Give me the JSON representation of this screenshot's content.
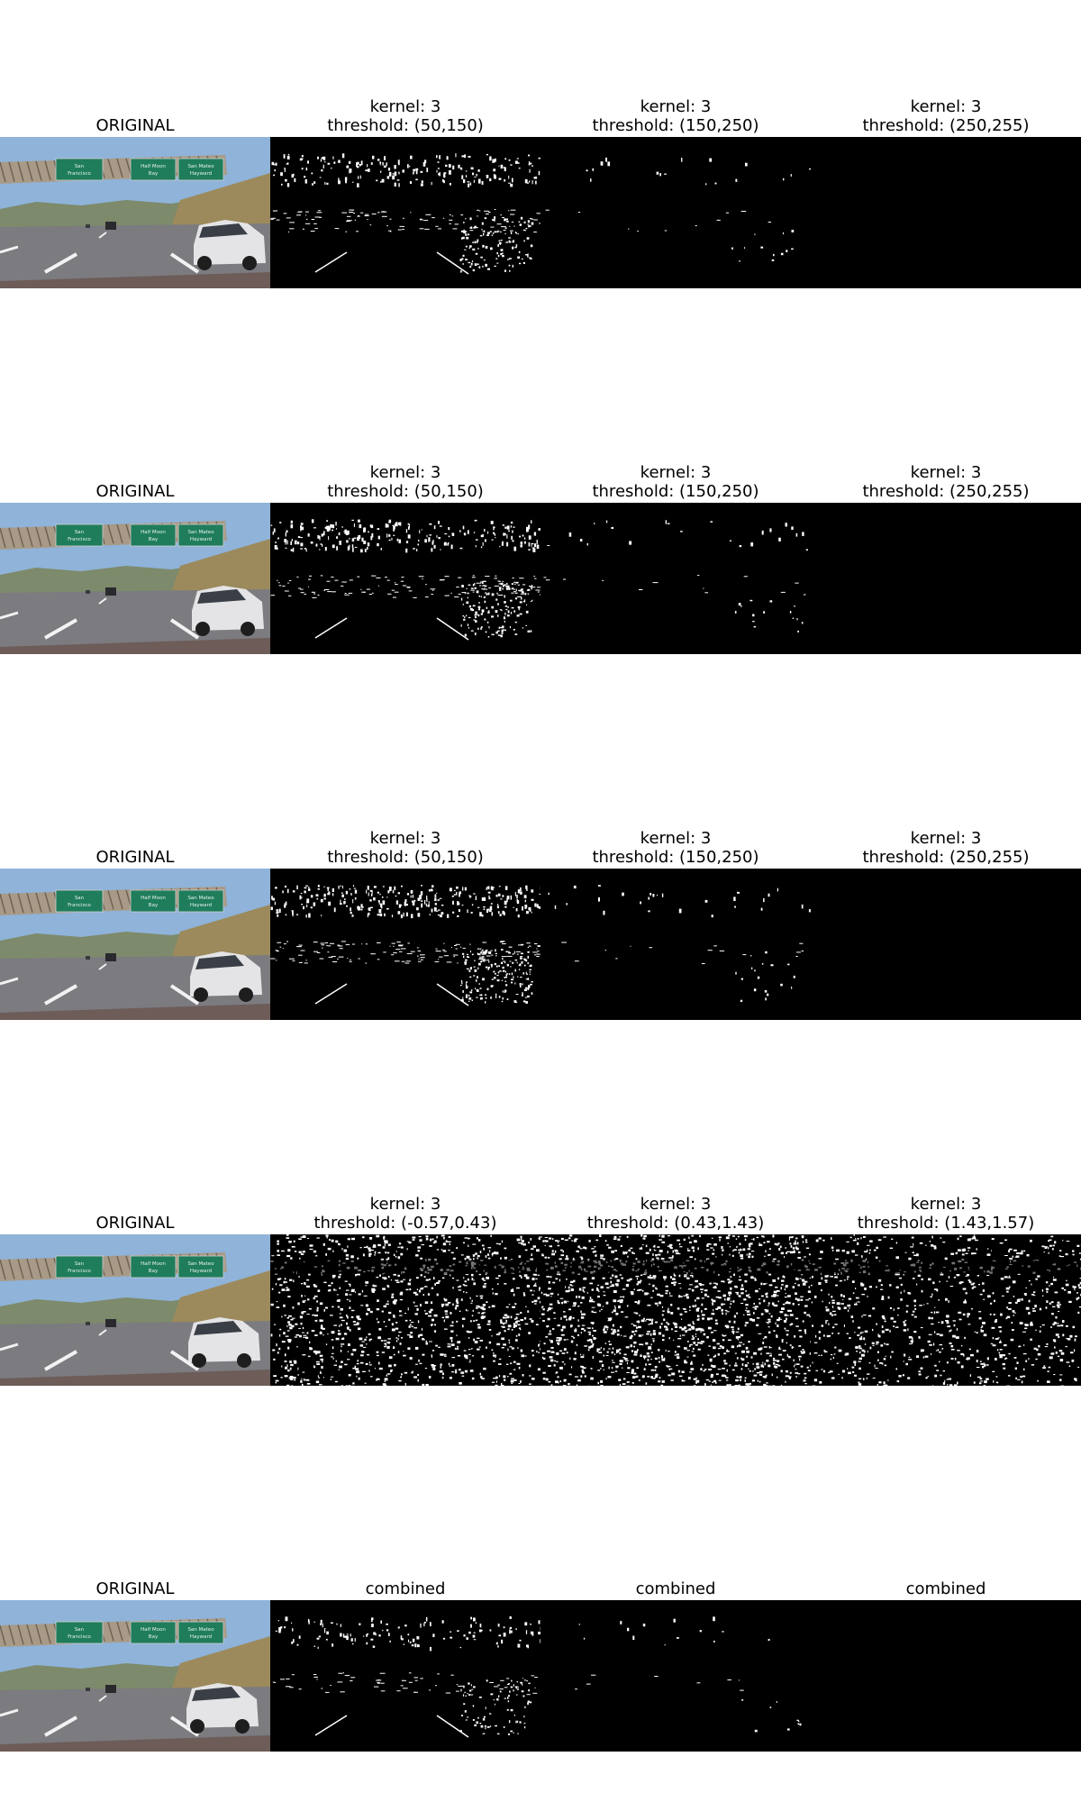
{
  "rows": [
    {
      "panels": [
        {
          "type": "original",
          "title": [
            "ORIGINAL"
          ]
        },
        {
          "type": "edges",
          "density": 0.22,
          "title": [
            "kernel: 3",
            "threshold: (50,150)"
          ]
        },
        {
          "type": "edges",
          "density": 0.02,
          "title": [
            "kernel: 3",
            "threshold: (150,250)"
          ]
        },
        {
          "type": "edges",
          "density": 0.0,
          "title": [
            "kernel: 3",
            "threshold: (250,255)"
          ]
        }
      ]
    },
    {
      "panels": [
        {
          "type": "original",
          "title": [
            "ORIGINAL"
          ]
        },
        {
          "type": "edges",
          "density": 0.25,
          "title": [
            "kernel: 3",
            "threshold: (50,150)"
          ]
        },
        {
          "type": "edges",
          "density": 0.025,
          "title": [
            "kernel: 3",
            "threshold: (150,250)"
          ]
        },
        {
          "type": "edges",
          "density": 0.0,
          "title": [
            "kernel: 3",
            "threshold: (250,255)"
          ]
        }
      ]
    },
    {
      "panels": [
        {
          "type": "original",
          "title": [
            "ORIGINAL"
          ]
        },
        {
          "type": "edges",
          "density": 0.3,
          "title": [
            "kernel: 3",
            "threshold: (50,150)"
          ]
        },
        {
          "type": "edges",
          "density": 0.03,
          "title": [
            "kernel: 3",
            "threshold: (150,250)"
          ]
        },
        {
          "type": "edges",
          "density": 0.0,
          "title": [
            "kernel: 3",
            "threshold: (250,255)"
          ]
        }
      ]
    },
    {
      "panels": [
        {
          "type": "original",
          "title": [
            "ORIGINAL"
          ]
        },
        {
          "type": "noise",
          "density": 0.42,
          "title": [
            "kernel: 3",
            "threshold: (-0.57,0.43)"
          ]
        },
        {
          "type": "noise",
          "density": 0.55,
          "title": [
            "kernel: 3",
            "threshold: (0.43,1.43)"
          ]
        },
        {
          "type": "noise",
          "density": 0.32,
          "title": [
            "kernel: 3",
            "threshold: (1.43,1.57)"
          ]
        }
      ]
    },
    {
      "panels": [
        {
          "type": "original",
          "title": [
            "ORIGINAL"
          ]
        },
        {
          "type": "edges",
          "density": 0.14,
          "title": [
            "combined"
          ]
        },
        {
          "type": "edges",
          "density": 0.015,
          "title": [
            "combined"
          ]
        },
        {
          "type": "edges",
          "density": 0.0,
          "title": [
            "combined"
          ]
        }
      ]
    }
  ],
  "sign": {
    "left": {
      "line1": "San",
      "line2": "Francisco"
    },
    "mid": {
      "line1": "Half Moon",
      "line2": "Bay"
    },
    "right": {
      "line1": "San Mateo",
      "line2": "Hayward"
    }
  },
  "colors": {
    "sky": "#8fb3d9",
    "hills": "#7d8a6b",
    "road": "#7b7b80",
    "sign_green": "#1c7a5a",
    "bridge": "#a89a86",
    "car": "#e4e4e6"
  }
}
